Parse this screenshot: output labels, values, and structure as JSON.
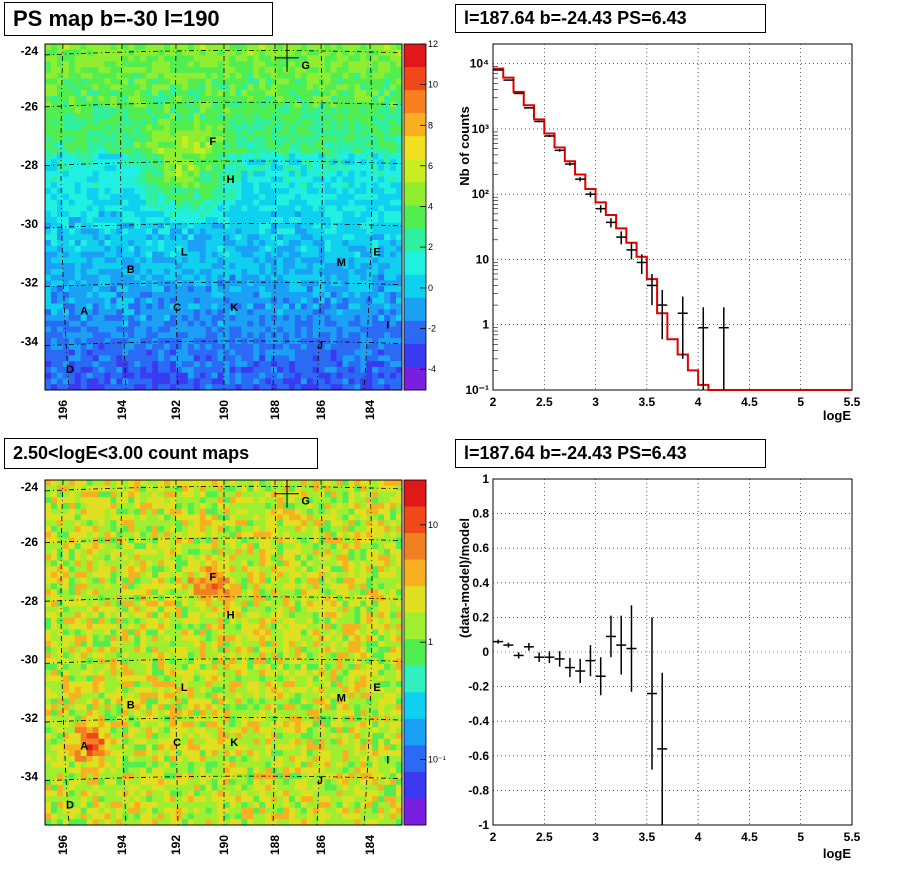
{
  "titles": {
    "ps_map": "PS map b=-30 l=190",
    "spectrum": "l=187.64 b=-24.43 PS=6.43",
    "count_map": "2.50<logE<3.00 count maps",
    "residual": "l=187.64 b=-24.43 PS=6.43"
  },
  "maps": {
    "y_ticks": [
      "-24",
      "-26",
      "-28",
      "-30",
      "-32",
      "-34"
    ],
    "x_ticks": [
      "196",
      "194",
      "192",
      "190",
      "188",
      "186",
      "184"
    ],
    "sources": [
      "G",
      "F",
      "H",
      "L",
      "B",
      "M",
      "E",
      "A",
      "C",
      "K",
      "I",
      "J",
      "D"
    ],
    "ps_colorbar_ticks": [
      "12",
      "10",
      "8",
      "6",
      "4",
      "2",
      "0",
      "-2",
      "-4"
    ],
    "count_colorbar_ticks": [
      "10",
      "1",
      "10⁻¹"
    ],
    "ps_palette": [
      "#7a1fe0",
      "#3a3af0",
      "#2a6af5",
      "#1aa0f5",
      "#10d0f0",
      "#20f0e0",
      "#30f0a0",
      "#50ee50",
      "#90ee30",
      "#c8ee20",
      "#f0e020",
      "#f8b020",
      "#f88020",
      "#f04818",
      "#e01818"
    ],
    "count_palette": [
      "#7a1fe0",
      "#3a3af0",
      "#2a6af5",
      "#1aa0f5",
      "#10d0f0",
      "#30f0c0",
      "#50ee50",
      "#a0ee30",
      "#e0e020",
      "#f8b020",
      "#f08020",
      "#f04818",
      "#e01818"
    ]
  },
  "chart_data": [
    {
      "type": "line",
      "title": "l=187.64 b=-24.43 PS=6.43",
      "xlabel": "logE",
      "ylabel": "Nb of counts",
      "xlim": [
        2,
        5.5
      ],
      "ylim": [
        0.1,
        20000
      ],
      "yscale": "log",
      "x_ticks": [
        "2",
        "2.5",
        "3",
        "3.5",
        "4",
        "4.5",
        "5",
        "5.5"
      ],
      "y_ticks": [
        "10⁻¹",
        "1",
        "10",
        "10²",
        "10³",
        "10⁴"
      ],
      "grid": true,
      "series": [
        {
          "kind": "points-with-errors",
          "color": "#000000",
          "x": [
            2.05,
            2.15,
            2.25,
            2.35,
            2.45,
            2.55,
            2.65,
            2.75,
            2.85,
            2.95,
            3.05,
            3.15,
            3.25,
            3.35,
            3.45,
            3.55,
            3.65,
            3.85,
            4.05,
            4.25
          ],
          "y": [
            8000,
            5600,
            3500,
            2100,
            1300,
            780,
            470,
            290,
            170,
            100,
            60,
            37,
            22,
            14,
            9,
            4,
            2,
            1.5,
            0.9,
            0.9
          ],
          "err": [
            90,
            75,
            59,
            46,
            36,
            28,
            22,
            17,
            13,
            10,
            8,
            6,
            5,
            4,
            3,
            2,
            1.4,
            1.2,
            0.95,
            0.95
          ]
        },
        {
          "kind": "step",
          "color": "#dd0000",
          "x_edges": [
            2.0,
            2.1,
            2.2,
            2.3,
            2.4,
            2.5,
            2.6,
            2.7,
            2.8,
            2.9,
            3.0,
            3.1,
            3.2,
            3.3,
            3.4,
            3.5,
            3.6,
            3.7,
            3.8,
            3.9,
            4.0,
            4.1,
            5.5
          ],
          "y": [
            8400,
            6100,
            3700,
            2300,
            1400,
            850,
            520,
            320,
            200,
            120,
            75,
            48,
            30,
            18,
            11,
            5,
            1.5,
            0.6,
            0.35,
            0.2,
            0.12,
            0.1
          ]
        }
      ]
    },
    {
      "type": "scatter",
      "title": "l=187.64 b=-24.43 PS=6.43",
      "xlabel": "logE",
      "ylabel": "(data-model)/model",
      "xlim": [
        2,
        5.5
      ],
      "ylim": [
        -1,
        1
      ],
      "x_ticks": [
        "2",
        "2.5",
        "3",
        "3.5",
        "4",
        "4.5",
        "5",
        "5.5"
      ],
      "y_ticks": [
        "1",
        "0.8",
        "0.6",
        "0.4",
        "0.2",
        "0",
        "-0.2",
        "-0.4",
        "-0.6",
        "-0.8",
        "-1"
      ],
      "grid": true,
      "series": [
        {
          "kind": "points-with-errors",
          "color": "#000000",
          "x": [
            2.05,
            2.15,
            2.25,
            2.35,
            2.45,
            2.55,
            2.65,
            2.75,
            2.85,
            2.95,
            3.05,
            3.15,
            3.25,
            3.35,
            3.55,
            3.65
          ],
          "y": [
            0.06,
            0.04,
            -0.02,
            0.03,
            -0.03,
            -0.03,
            -0.04,
            -0.09,
            -0.11,
            -0.05,
            -0.14,
            0.09,
            0.04,
            0.02,
            -0.24,
            -0.56
          ],
          "err": [
            0.012,
            0.014,
            0.018,
            0.022,
            0.027,
            0.034,
            0.045,
            0.055,
            0.07,
            0.09,
            0.11,
            0.12,
            0.17,
            0.25,
            0.44,
            0.44
          ]
        }
      ]
    }
  ]
}
